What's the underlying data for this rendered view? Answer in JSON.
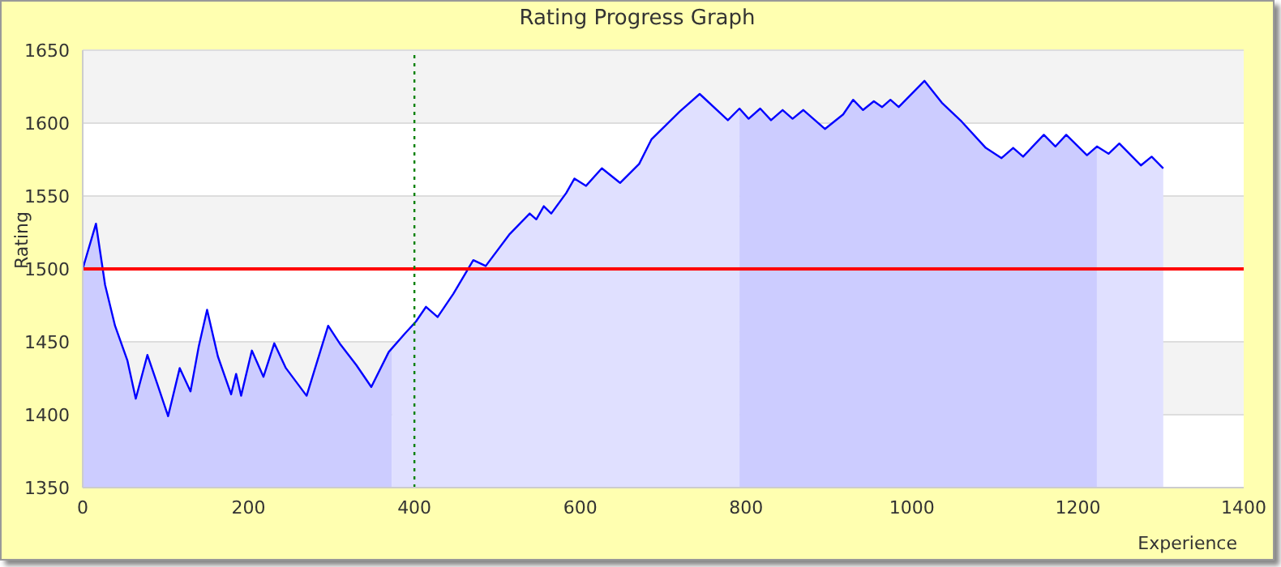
{
  "chart_data": {
    "type": "line",
    "title": "Rating Progress Graph",
    "xlabel": "Experience",
    "ylabel": "Rating",
    "xlim": [
      0,
      1400
    ],
    "xticks": [
      0,
      200,
      400,
      600,
      800,
      1000,
      1200,
      1400
    ],
    "ylim": [
      1350,
      1650
    ],
    "yticks": [
      1350,
      1400,
      1450,
      1500,
      1550,
      1600,
      1650
    ],
    "grid": "y",
    "marker": "none",
    "line_style": "solid",
    "ref_lines": [
      {
        "axis": "y",
        "value": 1500,
        "color": "#ff0000",
        "line_style": "solid"
      },
      {
        "axis": "x",
        "value": 400,
        "color": "#008000",
        "line_style": "dotted"
      }
    ],
    "series": [
      {
        "type": "area",
        "color": "#ccccff",
        "x": [
          0,
          16,
          27,
          39,
          54,
          64,
          78,
          90,
          103,
          117,
          130,
          140,
          150,
          163,
          179,
          185,
          191,
          204,
          218,
          231,
          245,
          270,
          296,
          311,
          330,
          348,
          369,
          373
        ],
        "values": [
          1500,
          1531,
          1489,
          1461,
          1437,
          1411,
          1441,
          1421,
          1399,
          1432,
          1416,
          1447,
          1472,
          1440,
          1414,
          1428,
          1413,
          1444,
          1426,
          1449,
          1432,
          1413,
          1461,
          1448,
          1434,
          1419,
          1443,
          1446
        ]
      },
      {
        "type": "area",
        "color": "#e0e0ff",
        "x": [
          373,
          389,
          402,
          414,
          428,
          447,
          471,
          486,
          515,
          539,
          547,
          556,
          565,
          583,
          593,
          607,
          626,
          648,
          671,
          686,
          720,
          744,
          778,
          792
        ],
        "values": [
          1446,
          1456,
          1464,
          1474,
          1467,
          1483,
          1506,
          1502,
          1524,
          1538,
          1534,
          1543,
          1538,
          1552,
          1562,
          1557,
          1569,
          1559,
          1572,
          1589,
          1608,
          1620,
          1602,
          1610
        ]
      },
      {
        "type": "area",
        "color": "#ccccff",
        "x": [
          792,
          803,
          817,
          830,
          844,
          856,
          869,
          895,
          917,
          929,
          941,
          954,
          964,
          974,
          984,
          1015,
          1036,
          1060,
          1089,
          1108,
          1122,
          1134,
          1159,
          1173,
          1186,
          1211,
          1223
        ],
        "values": [
          1610,
          1603,
          1610,
          1602,
          1609,
          1603,
          1609,
          1596,
          1606,
          1616,
          1609,
          1615,
          1611,
          1616,
          1611,
          1629,
          1614,
          1601,
          1583,
          1576,
          1583,
          1577,
          1592,
          1584,
          1592,
          1578,
          1584
        ]
      },
      {
        "type": "area",
        "color": "#e0e0ff",
        "x": [
          1223,
          1237,
          1250,
          1276,
          1289,
          1303
        ],
        "values": [
          1584,
          1579,
          1586,
          1571,
          1577,
          1569
        ]
      },
      {
        "color": "#0000ff",
        "x": [
          0,
          16,
          27,
          39,
          54,
          64,
          78,
          90,
          103,
          117,
          130,
          140,
          150,
          163,
          179,
          185,
          191,
          204,
          218,
          231,
          245,
          270,
          296,
          311,
          330,
          348,
          369,
          389,
          402,
          414,
          428,
          447,
          471,
          486,
          515,
          539,
          547,
          556,
          565,
          583,
          593,
          607,
          626,
          648,
          671,
          686,
          720,
          744,
          778,
          792,
          803,
          817,
          830,
          844,
          856,
          869,
          895,
          917,
          929,
          941,
          954,
          964,
          974,
          984,
          1015,
          1036,
          1060,
          1089,
          1108,
          1122,
          1134,
          1159,
          1173,
          1186,
          1211,
          1223,
          1237,
          1250,
          1276,
          1289,
          1303
        ],
        "values": [
          1500,
          1531,
          1489,
          1461,
          1437,
          1411,
          1441,
          1421,
          1399,
          1432,
          1416,
          1447,
          1472,
          1440,
          1414,
          1428,
          1413,
          1444,
          1426,
          1449,
          1432,
          1413,
          1461,
          1448,
          1434,
          1419,
          1443,
          1456,
          1464,
          1474,
          1467,
          1483,
          1506,
          1502,
          1524,
          1538,
          1534,
          1543,
          1538,
          1552,
          1562,
          1557,
          1569,
          1559,
          1572,
          1589,
          1608,
          1620,
          1602,
          1610,
          1603,
          1610,
          1602,
          1609,
          1603,
          1609,
          1596,
          1606,
          1616,
          1609,
          1615,
          1611,
          1616,
          1611,
          1629,
          1614,
          1601,
          1583,
          1576,
          1583,
          1577,
          1592,
          1584,
          1592,
          1578,
          1584,
          1579,
          1586,
          1571,
          1577,
          1569
        ]
      }
    ]
  }
}
